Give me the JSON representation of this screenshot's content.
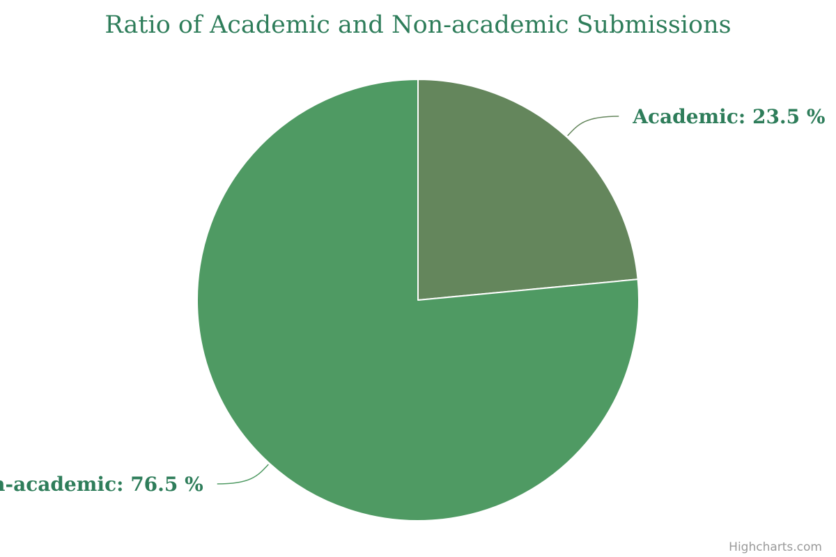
{
  "chart_data": {
    "type": "pie",
    "title": "Ratio of Academic and Non-academic Submissions",
    "slices": [
      {
        "name": "Academic",
        "value": 23.5,
        "unit": "%",
        "color": "#64865c"
      },
      {
        "name": "Non-academic",
        "value": 76.5,
        "unit": "%",
        "color": "#4f9a63"
      }
    ],
    "label_color": "#2e7d5a",
    "title_color": "#2e7d5a",
    "credits": "Highcharts.com",
    "credits_color": "#999999"
  }
}
